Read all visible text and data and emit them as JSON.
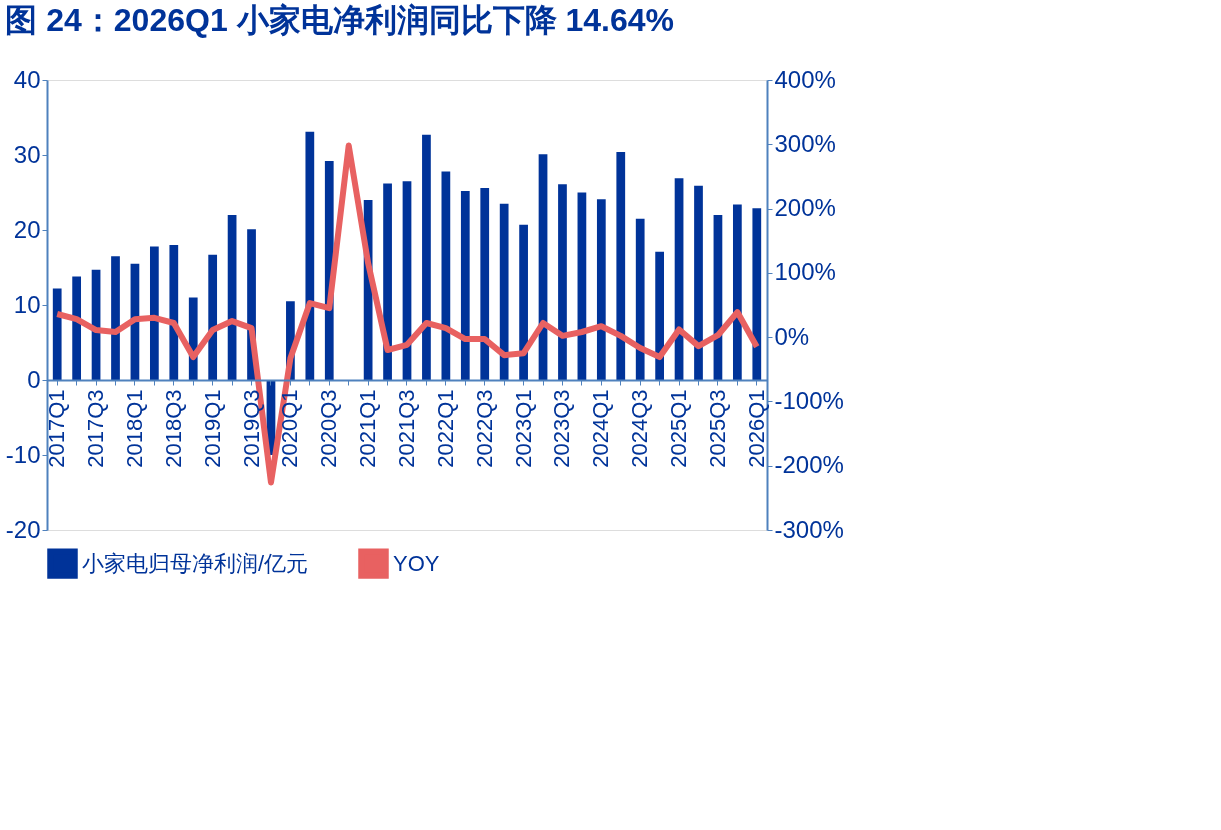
{
  "chart_data": {
    "type": "bar",
    "title": "图 24：2026Q1 小家电净利润同比下降 14.64%",
    "categories": [
      "2017Q1",
      null,
      "2017Q3",
      null,
      "2018Q1",
      null,
      "2018Q3",
      null,
      "2019Q1",
      null,
      "2019Q3",
      null,
      "2020Q1",
      null,
      "2020Q3",
      null,
      "2021Q1",
      null,
      "2021Q3",
      null,
      "2022Q1",
      null,
      "2022Q3",
      null,
      "2023Q1",
      null,
      "2023Q3",
      null,
      "2024Q1",
      null,
      "2024Q3",
      null,
      "2025Q1",
      null,
      "2025Q3",
      null,
      "2026Q1"
    ],
    "series": [
      {
        "name": "小家电归母净利润/亿元",
        "color": "#003399",
        "values": [
          12.2,
          13.8,
          14.7,
          16.5,
          15.5,
          17.8,
          18.0,
          11.0,
          16.7,
          22.0,
          20.1,
          -10,
          10.5,
          33.1,
          29.2,
          null,
          24.0,
          26.2,
          26.5,
          32.7,
          27.8,
          25.2,
          25.6,
          23.5,
          20.7,
          30.1,
          26.1,
          25.0,
          24.1,
          30.4,
          21.5,
          17.1,
          26.9,
          25.9,
          22.0,
          23.4,
          22.9
        ]
      },
      {
        "name": "YOY",
        "type": "line",
        "axis": "y2",
        "color": "#e86161",
        "values": [
          36,
          28,
          11,
          8,
          28,
          30,
          22,
          -31,
          11,
          25,
          14,
          -226,
          -33,
          53,
          45,
          298,
          115,
          -20,
          -12,
          22,
          14,
          -3,
          -3,
          -28,
          -25,
          22,
          2,
          8,
          17,
          2,
          -17,
          -31,
          12,
          -14,
          3,
          39,
          -15
        ]
      }
    ],
    "ylim": [
      -20,
      40
    ],
    "yticks": [
      -20,
      -10,
      0,
      10,
      20,
      30,
      40
    ],
    "y2lim": [
      -300,
      400
    ],
    "y2ticks": [
      {
        "value": -300,
        "label": "-300%"
      },
      {
        "value": -200,
        "label": "-200%"
      },
      {
        "value": -100,
        "label": "-100%"
      },
      {
        "value": 0,
        "label": "0%"
      },
      {
        "value": 100,
        "label": "100%"
      },
      {
        "value": 200,
        "label": "200%"
      },
      {
        "value": 300,
        "label": "300%"
      },
      {
        "value": 400,
        "label": "400%"
      }
    ],
    "legend": "bottom",
    "grid": false
  }
}
